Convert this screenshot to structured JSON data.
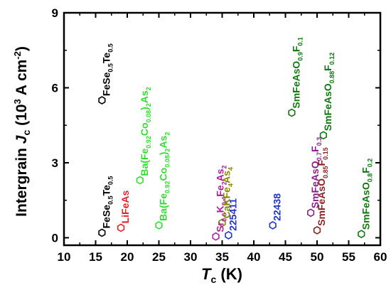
{
  "chart_data": {
    "type": "scatter",
    "title": "",
    "xlabel": "T_c (K)",
    "ylabel": "Intergrain J_c (10^3 A cm^-2)",
    "x_title_main": "T",
    "x_title_sub": "c",
    "x_title_unit": " (K)",
    "y_title_pre": "Intergrain ",
    "y_title_main": "J",
    "y_title_sub": "c",
    "y_title_unit": " (10",
    "y_title_exp": "3",
    "y_title_unit2": " A cm",
    "y_title_exp2": "-2",
    "y_title_close": ")",
    "xlim": [
      10,
      60
    ],
    "ylim": [
      -0.3,
      9
    ],
    "x_ticks": [
      "10",
      "15",
      "20",
      "25",
      "30",
      "35",
      "40",
      "45",
      "50",
      "55",
      "60"
    ],
    "y_ticks": [
      "0",
      "3",
      "6",
      "9"
    ],
    "marker": "hexagon",
    "points": [
      {
        "x": 16,
        "y": 5.5,
        "color": "#000000",
        "label": "FeSe0.5Te0.5",
        "label_parts": [
          [
            "FeSe",
            ""
          ],
          [
            "0.5",
            "sub"
          ],
          [
            "Te",
            ""
          ],
          [
            "0.5",
            "sub"
          ]
        ]
      },
      {
        "x": 16,
        "y": 0.2,
        "color": "#000000",
        "label": "FeSe0.5Te0.5",
        "label_parts": [
          [
            "FeSe",
            ""
          ],
          [
            "0.5",
            "sub"
          ],
          [
            "Te",
            ""
          ],
          [
            "0.5",
            "sub"
          ]
        ]
      },
      {
        "x": 19,
        "y": 0.4,
        "color": "#e8202a",
        "label": "LiFeAs",
        "label_parts": [
          [
            "LiFeAs",
            ""
          ]
        ]
      },
      {
        "x": 22,
        "y": 2.3,
        "color": "#33dd33",
        "label": "Ba(Fe0.92Co0.08)2As2",
        "label_parts": [
          [
            "Ba(Fe",
            ""
          ],
          [
            "0.92",
            "sub"
          ],
          [
            "Co",
            ""
          ],
          [
            "0.08",
            "sub"
          ],
          [
            ")",
            ""
          ],
          [
            "2",
            "sub"
          ],
          [
            "As",
            ""
          ],
          [
            "2",
            "sub"
          ]
        ]
      },
      {
        "x": 25,
        "y": 0.5,
        "color": "#33dd33",
        "label": "Ba(Fe0.92Co0.08)2As2",
        "label_parts": [
          [
            "Ba(Fe",
            ""
          ],
          [
            "0.92",
            "sub"
          ],
          [
            "Co",
            ""
          ],
          [
            "0.08",
            "sub"
          ],
          [
            ")",
            ""
          ],
          [
            "2",
            "sub"
          ],
          [
            "As",
            ""
          ],
          [
            "2",
            "sub"
          ]
        ]
      },
      {
        "x": 34,
        "y": 0.05,
        "color": "#aa2299",
        "label": "Sr0.6K0.4Fe2As2",
        "label_parts": [
          [
            "Sr",
            ""
          ],
          [
            "0.6",
            "sub"
          ],
          [
            "K",
            ""
          ],
          [
            "0.4",
            "sub"
          ],
          [
            "Fe",
            ""
          ],
          [
            "2",
            "sub"
          ],
          [
            "As",
            ""
          ],
          [
            "2",
            "sub"
          ]
        ]
      },
      {
        "x": 35,
        "y": 0.6,
        "color": "#888800",
        "label": "CaKFe4As4",
        "label_parts": [
          [
            "CaKFe",
            ""
          ],
          [
            "4",
            "sub"
          ],
          [
            "As",
            ""
          ],
          [
            "4",
            "sub"
          ]
        ]
      },
      {
        "x": 36,
        "y": 0.1,
        "color": "#2233cc",
        "label": "225411",
        "label_parts": [
          [
            "225411",
            ""
          ]
        ]
      },
      {
        "x": 43,
        "y": 0.5,
        "color": "#2233cc",
        "label": "22438",
        "label_parts": [
          [
            "22438",
            ""
          ]
        ]
      },
      {
        "x": 46,
        "y": 5.0,
        "color": "#117711",
        "label": "SmFeAsO0.9F0.1",
        "label_parts": [
          [
            "SmFeAsO",
            ""
          ],
          [
            "0.9",
            "sub"
          ],
          [
            "F",
            ""
          ],
          [
            "0.1",
            "sub"
          ]
        ]
      },
      {
        "x": 49,
        "y": 1.0,
        "color": "#882288",
        "label": "SmFeAsO0.7F0.3",
        "label_parts": [
          [
            "SmFeAsO",
            ""
          ],
          [
            "0.7",
            "sub"
          ],
          [
            "F",
            ""
          ],
          [
            "0.3",
            "sub"
          ]
        ]
      },
      {
        "x": 50,
        "y": 0.3,
        "color": "#882222",
        "label": "SmFeAsO0.85F0.15",
        "label_parts": [
          [
            "SmFeAsO",
            ""
          ],
          [
            "0.85",
            "sub"
          ],
          [
            "F",
            ""
          ],
          [
            "0.15",
            "sub"
          ]
        ]
      },
      {
        "x": 51,
        "y": 4.1,
        "color": "#117711",
        "label": "SmFeAsO0.88F0.12",
        "label_parts": [
          [
            "SmFeAsO",
            ""
          ],
          [
            "0.88",
            "sub"
          ],
          [
            "F",
            ""
          ],
          [
            "0.12",
            "sub"
          ]
        ]
      },
      {
        "x": 57,
        "y": 0.15,
        "color": "#117711",
        "label": "SmFeAsO0.8F0.2",
        "label_parts": [
          [
            "SmFeAsO",
            ""
          ],
          [
            "0.8",
            "sub"
          ],
          [
            "F",
            ""
          ],
          [
            "0.2",
            "sub"
          ]
        ]
      }
    ]
  }
}
